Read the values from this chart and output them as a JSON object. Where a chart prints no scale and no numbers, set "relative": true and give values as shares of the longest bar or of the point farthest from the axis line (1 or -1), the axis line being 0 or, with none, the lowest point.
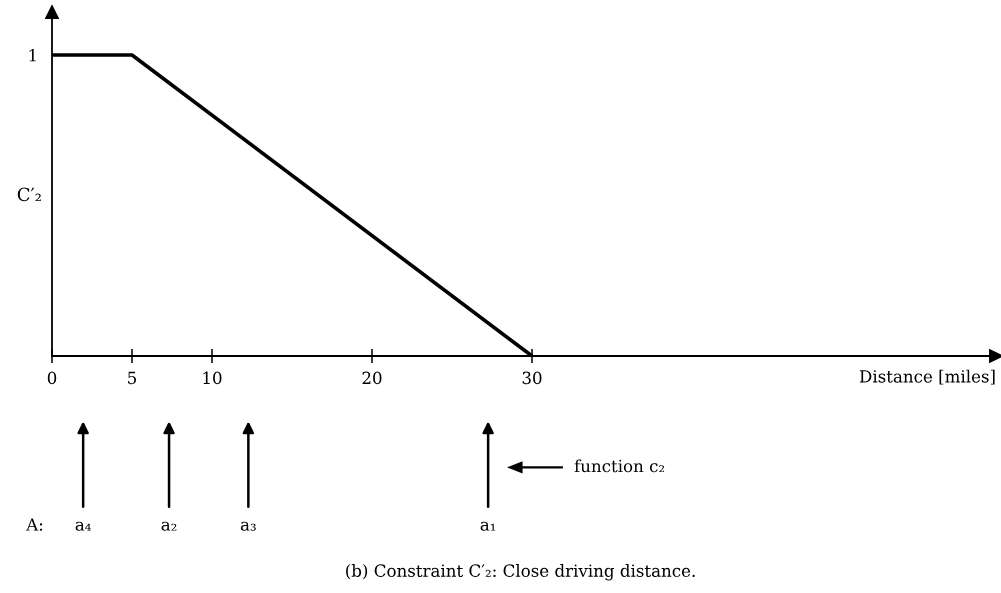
{
  "chart_data": {
    "type": "line",
    "title": "(b) Constraint C′₂: Close driving distance.",
    "xlabel": "Distance [miles]",
    "ylabel": "C′₂",
    "x": [
      0,
      5,
      30
    ],
    "series": [
      {
        "color": "#000000",
        "values": [
          1,
          1,
          0
        ]
      }
    ],
    "relative": true,
    "xlim": [
      0,
      59
    ],
    "xticks": [
      0,
      5,
      10,
      20,
      30
    ],
    "tick_labels": "x",
    "annotations": [
      {
        "text": "1",
        "x": 0,
        "y": 1
      },
      "A:",
      "a₄",
      "a₂",
      "a₃",
      "a₁",
      "function c₂"
    ]
  }
}
